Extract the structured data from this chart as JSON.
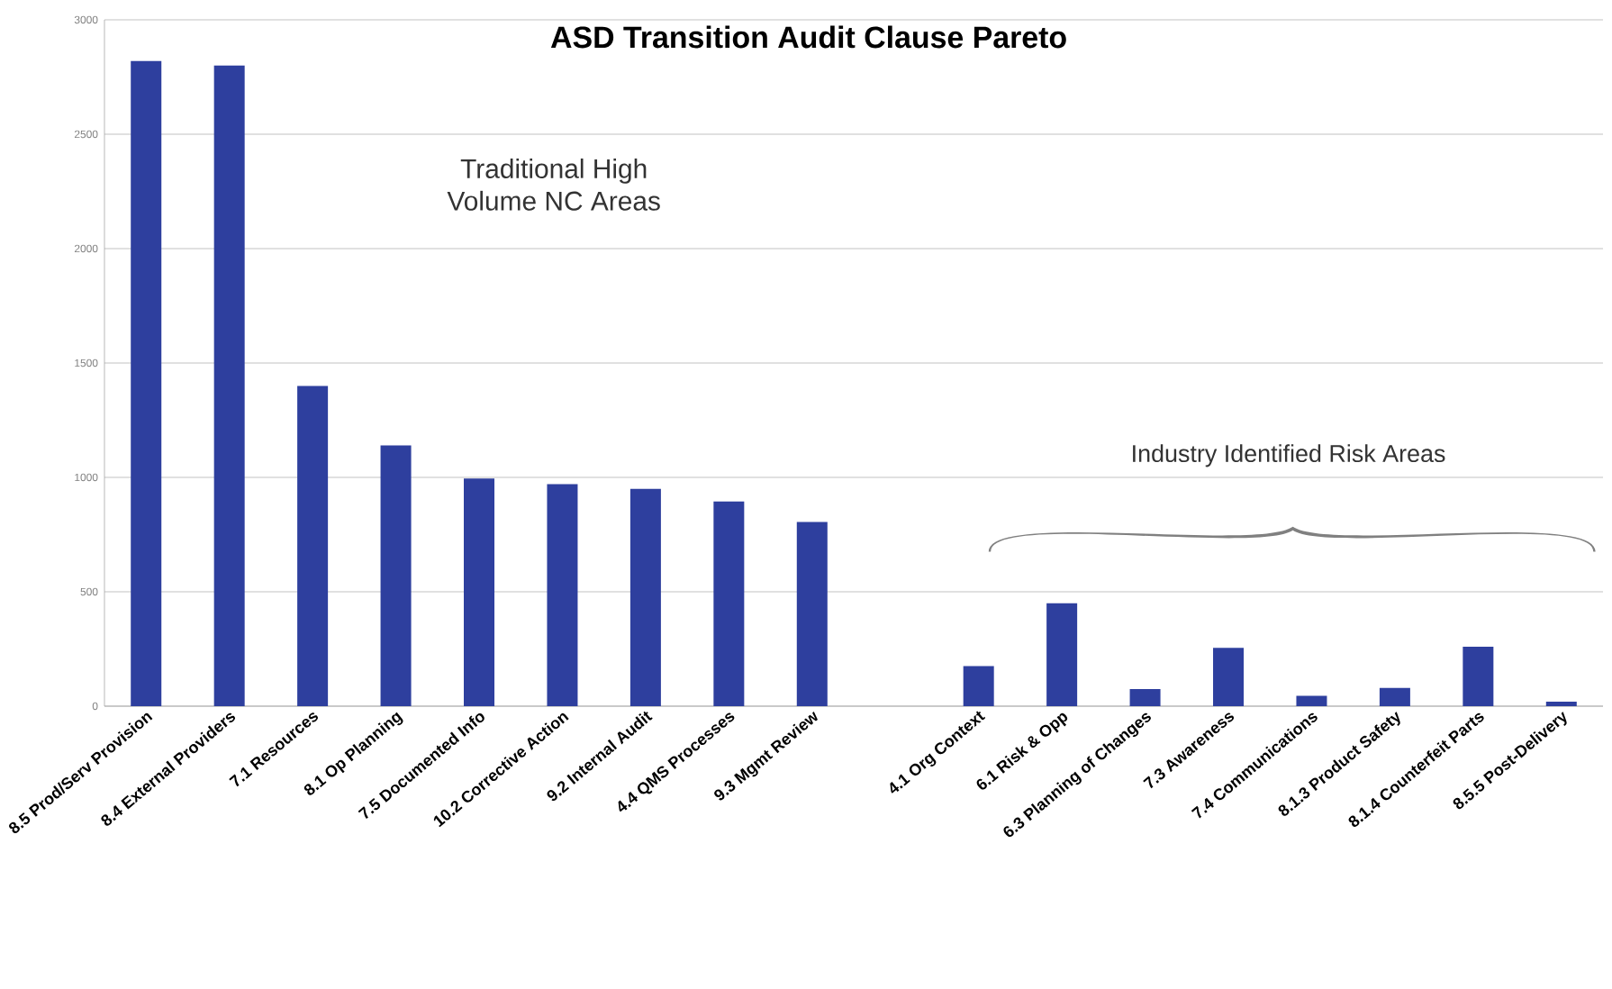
{
  "chart_data": {
    "type": "bar",
    "title": "ASD Transition Audit Clause Pareto",
    "categories": [
      "8.5 Prod/Serv Provision",
      "8.4 External Providers",
      "7.1 Resources",
      "8.1 Op Planning",
      "7.5 Documented Info",
      "10.2 Corrective Action",
      "9.2 Internal Audit",
      "4.4 QMS Processes",
      "9.3 Mgmt Review",
      null,
      "4.1 Org Context",
      "6.1 Risk & Opp",
      "6.3 Planning of Changes",
      "7.3 Awareness",
      "7.4 Communications",
      "8.1.3 Product Safety",
      "8.1.4 Counterfeit Parts",
      "8.5.5 Post-Delivery"
    ],
    "values": [
      2820,
      2800,
      1400,
      1140,
      995,
      970,
      950,
      895,
      805,
      null,
      175,
      450,
      75,
      255,
      45,
      80,
      260,
      20
    ],
    "color": "#2e3f9e",
    "ylim": [
      0,
      3000
    ],
    "yticks": [
      0,
      500,
      1000,
      1500,
      2000,
      2500,
      3000
    ],
    "grid": "y",
    "annotations": [
      "Traditional High Volume NC Areas",
      "Industry Identified Risk Areas"
    ]
  }
}
